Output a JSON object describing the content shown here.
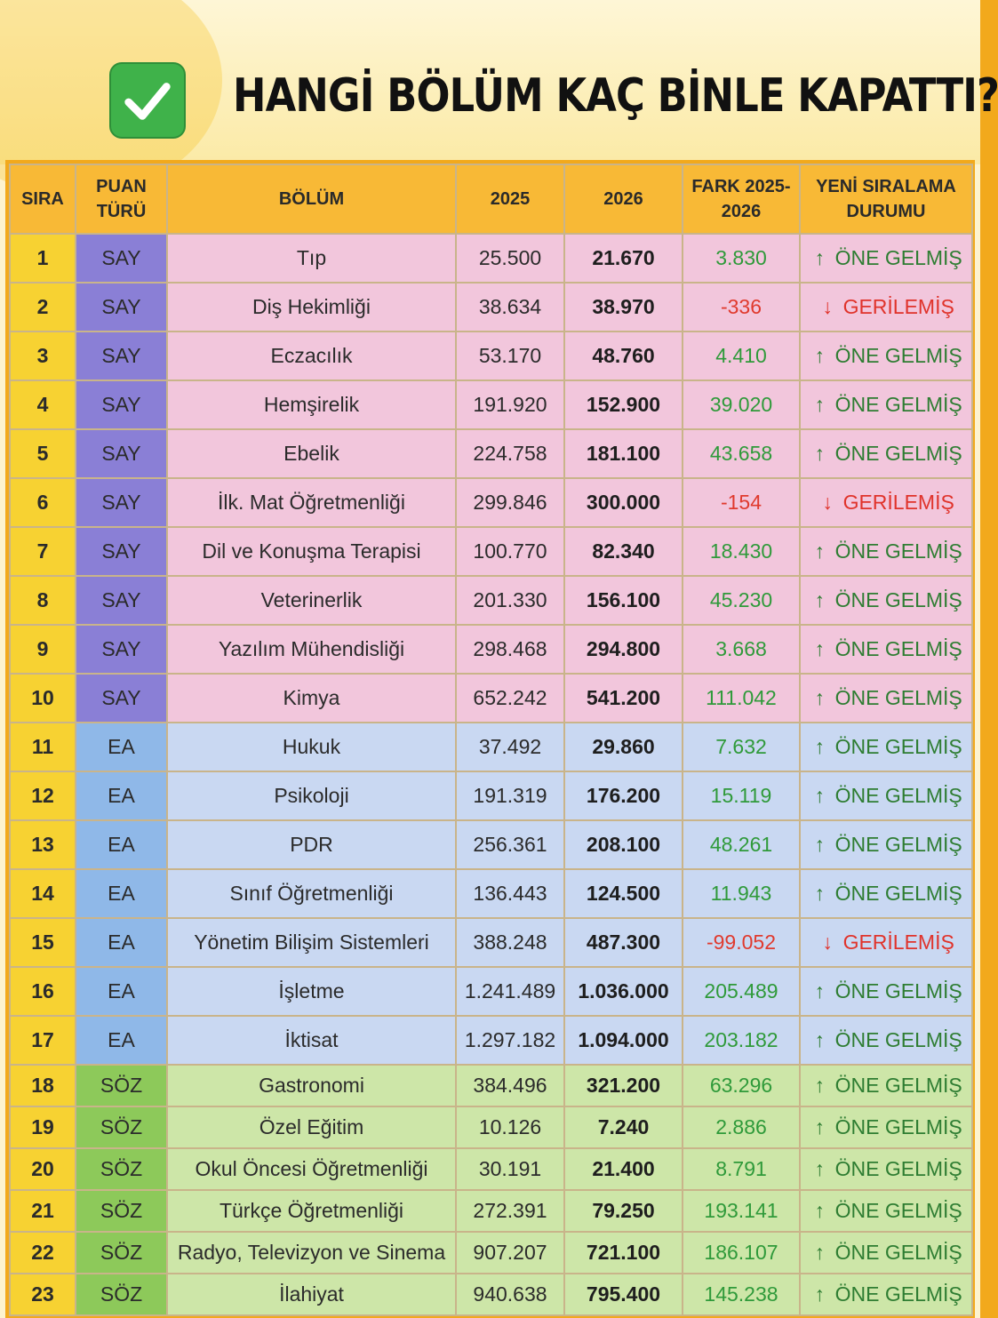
{
  "title": "HANGİ BÖLÜM KAÇ BİNLE KAPATTI?",
  "colors": {
    "orange": "#f2a91c",
    "say": "#8a7fd6",
    "ea": "#8fb8e8",
    "soz": "#8dc95a",
    "positive": "#2f9a3a",
    "negative": "#e03a2e"
  },
  "icons": {
    "header_check": "check-mark-icon",
    "up": "arrow-up-icon",
    "down": "arrow-down-icon"
  },
  "table": {
    "headers": {
      "sira": "SIRA",
      "puan": "PUAN TÜRÜ",
      "bolum": "BÖLÜM",
      "y2025": "2025",
      "y2026": "2026",
      "fark": "FARK 2025-2026",
      "durum": "YENİ SIRALAMA DURUMU"
    },
    "rows": [
      {
        "sira": "1",
        "puan": "SAY",
        "bolum": "Tıp",
        "y2025": "25.500",
        "y2026": "21.670",
        "fark": "3.830",
        "durum": "ÖNE GELMİŞ",
        "arrow": "↑"
      },
      {
        "sira": "2",
        "puan": "SAY",
        "bolum": "Diş Hekimliği",
        "y2025": "38.634",
        "y2026": "38.970",
        "fark": "-336",
        "durum": "GERİLEMİŞ",
        "arrow": "↓"
      },
      {
        "sira": "3",
        "puan": "SAY",
        "bolum": "Eczacılık",
        "y2025": "53.170",
        "y2026": "48.760",
        "fark": "4.410",
        "durum": "ÖNE GELMİŞ",
        "arrow": "↑"
      },
      {
        "sira": "4",
        "puan": "SAY",
        "bolum": "Hemşirelik",
        "y2025": "191.920",
        "y2026": "152.900",
        "fark": "39.020",
        "durum": "ÖNE GELMİŞ",
        "arrow": "↑"
      },
      {
        "sira": "5",
        "puan": "SAY",
        "bolum": "Ebelik",
        "y2025": "224.758",
        "y2026": "181.100",
        "fark": "43.658",
        "durum": "ÖNE GELMİŞ",
        "arrow": "↑"
      },
      {
        "sira": "6",
        "puan": "SAY",
        "bolum": "İlk. Mat Öğretmenliği",
        "y2025": "299.846",
        "y2026": "300.000",
        "fark": "-154",
        "durum": "GERİLEMİŞ",
        "arrow": "↓"
      },
      {
        "sira": "7",
        "puan": "SAY",
        "bolum": "Dil ve Konuşma Terapisi",
        "y2025": "100.770",
        "y2026": "82.340",
        "fark": "18.430",
        "durum": "ÖNE GELMİŞ",
        "arrow": "↑"
      },
      {
        "sira": "8",
        "puan": "SAY",
        "bolum": "Veterinerlik",
        "y2025": "201.330",
        "y2026": "156.100",
        "fark": "45.230",
        "durum": "ÖNE GELMİŞ",
        "arrow": "↑"
      },
      {
        "sira": "9",
        "puan": "SAY",
        "bolum": "Yazılım Mühendisliği",
        "y2025": "298.468",
        "y2026": "294.800",
        "fark": "3.668",
        "durum": "ÖNE GELMİŞ",
        "arrow": "↑"
      },
      {
        "sira": "10",
        "puan": "SAY",
        "bolum": "Kimya",
        "y2025": "652.242",
        "y2026": "541.200",
        "fark": "111.042",
        "durum": "ÖNE GELMİŞ",
        "arrow": "↑"
      },
      {
        "sira": "11",
        "puan": "EA",
        "bolum": "Hukuk",
        "y2025": "37.492",
        "y2026": "29.860",
        "fark": "7.632",
        "durum": "ÖNE GELMİŞ",
        "arrow": "↑"
      },
      {
        "sira": "12",
        "puan": "EA",
        "bolum": "Psikoloji",
        "y2025": "191.319",
        "y2026": "176.200",
        "fark": "15.119",
        "durum": "ÖNE GELMİŞ",
        "arrow": "↑"
      },
      {
        "sira": "13",
        "puan": "EA",
        "bolum": "PDR",
        "y2025": "256.361",
        "y2026": "208.100",
        "fark": "48.261",
        "durum": "ÖNE GELMİŞ",
        "arrow": "↑"
      },
      {
        "sira": "14",
        "puan": "EA",
        "bolum": "Sınıf Öğretmenliği",
        "y2025": "136.443",
        "y2026": "124.500",
        "fark": "11.943",
        "durum": "ÖNE GELMİŞ",
        "arrow": "↑"
      },
      {
        "sira": "15",
        "puan": "EA",
        "bolum": "Yönetim Bilişim Sistemleri",
        "y2025": "388.248",
        "y2026": "487.300",
        "fark": "-99.052",
        "durum": "GERİLEMİŞ",
        "arrow": "↓"
      },
      {
        "sira": "16",
        "puan": "EA",
        "bolum": "İşletme",
        "y2025": "1.241.489",
        "y2026": "1.036.000",
        "fark": "205.489",
        "durum": "ÖNE GELMİŞ",
        "arrow": "↑"
      },
      {
        "sira": "17",
        "puan": "EA",
        "bolum": "İktisat",
        "y2025": "1.297.182",
        "y2026": "1.094.000",
        "fark": "203.182",
        "durum": "ÖNE GELMİŞ",
        "arrow": "↑"
      },
      {
        "sira": "18",
        "puan": "SÖZ",
        "bolum": "Gastronomi",
        "y2025": "384.496",
        "y2026": "321.200",
        "fark": "63.296",
        "durum": "ÖNE GELMİŞ",
        "arrow": "↑"
      },
      {
        "sira": "19",
        "puan": "SÖZ",
        "bolum": "Özel Eğitim",
        "y2025": "10.126",
        "y2026": "7.240",
        "fark": "2.886",
        "durum": "ÖNE GELMİŞ",
        "arrow": "↑"
      },
      {
        "sira": "20",
        "puan": "SÖZ",
        "bolum": "Okul Öncesi Öğretmenliği",
        "y2025": "30.191",
        "y2026": "21.400",
        "fark": "8.791",
        "durum": "ÖNE GELMİŞ",
        "arrow": "↑"
      },
      {
        "sira": "21",
        "puan": "SÖZ",
        "bolum": "Türkçe Öğretmenliği",
        "y2025": "272.391",
        "y2026": "79.250",
        "fark": "193.141",
        "durum": "ÖNE GELMİŞ",
        "arrow": "↑"
      },
      {
        "sira": "22",
        "puan": "SÖZ",
        "bolum": "Radyo, Televizyon ve Sinema",
        "y2025": "907.207",
        "y2026": "721.100",
        "fark": "186.107",
        "durum": "ÖNE GELMİŞ",
        "arrow": "↑"
      },
      {
        "sira": "23",
        "puan": "SÖZ",
        "bolum": "İlahiyat",
        "y2025": "940.638",
        "y2026": "795.400",
        "fark": "145.238",
        "durum": "ÖNE GELMİŞ",
        "arrow": "↑"
      }
    ]
  }
}
